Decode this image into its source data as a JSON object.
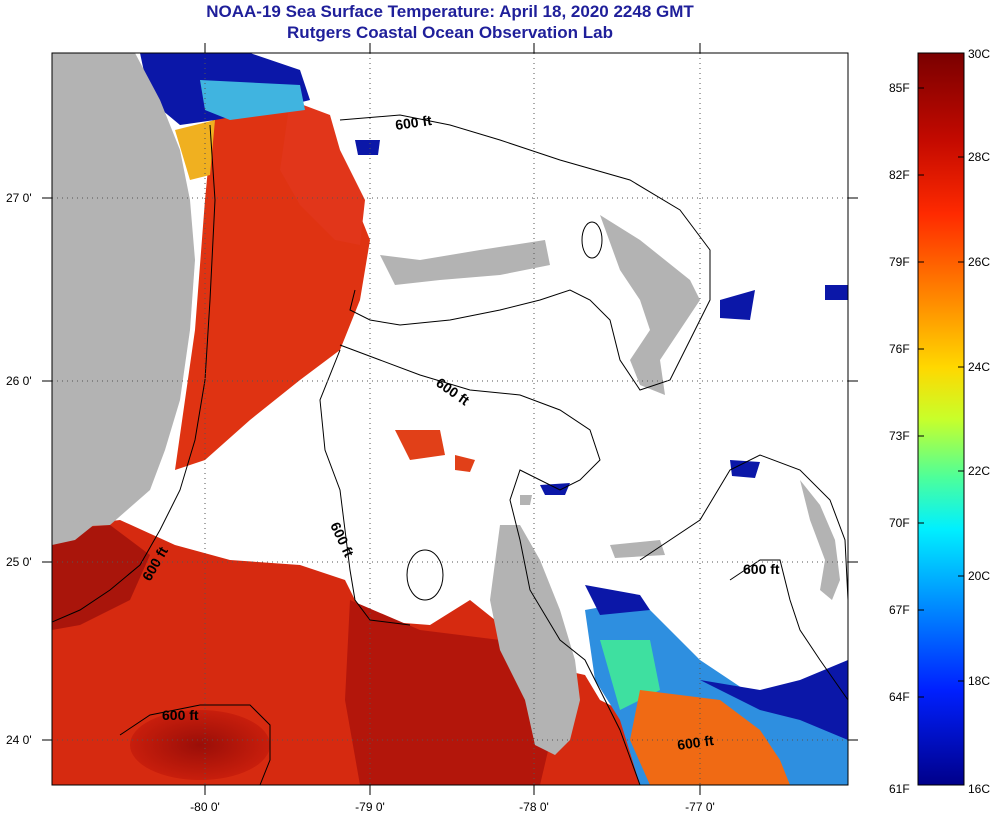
{
  "title": {
    "line1": "NOAA-19 Sea Surface Temperature:  April 18, 2020 2248 GMT",
    "line2": "Rutgers Coastal Ocean Observation Lab"
  },
  "axes": {
    "lat_ticks": [
      "27 0'",
      "26 0'",
      "25 0'",
      "24 0'"
    ],
    "lon_ticks": [
      "-80 0'",
      "-79 0'",
      "-78 0'",
      "-77 0'"
    ]
  },
  "contour_label": "600 ft",
  "colorbar": {
    "celsius": [
      "30C",
      "28C",
      "26C",
      "24C",
      "22C",
      "20C",
      "18C",
      "16C"
    ],
    "fahrenheit": [
      "85F",
      "82F",
      "79F",
      "76F",
      "73F",
      "70F",
      "67F",
      "64F",
      "61F"
    ]
  },
  "colors": {
    "title": "#1f1f9a",
    "land": "#b3b3b3",
    "cloud": "#ffffff",
    "warm": "#e23a12",
    "hot": "#a8120c",
    "cold": "#0b17a8"
  }
}
